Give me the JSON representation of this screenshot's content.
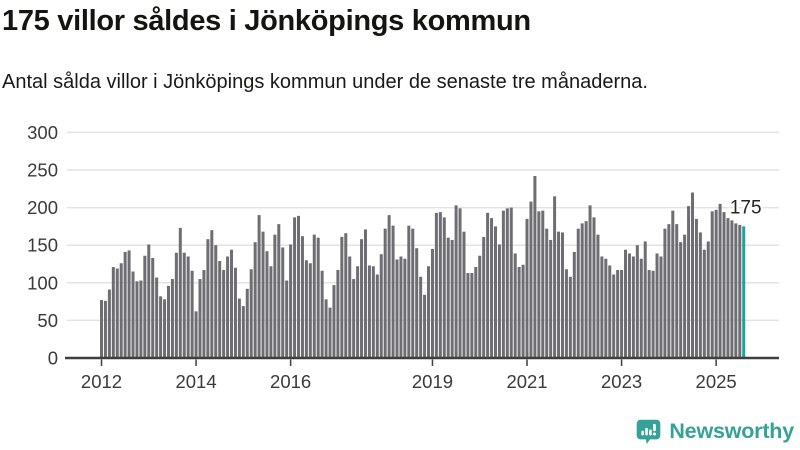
{
  "chart_data": {
    "type": "bar",
    "title": "175 villor såldes i Jönköpings kommun",
    "subtitle": "Antal sålda villor i Jönköpings kommun under de senaste tre månaderna.",
    "x_start": "2012-01",
    "x_end": "2025-08",
    "frequency": "monthly-rolling-3-months",
    "values": [
      77,
      76,
      91,
      121,
      119,
      126,
      141,
      143,
      115,
      102,
      103,
      136,
      151,
      133,
      107,
      82,
      78,
      96,
      105,
      140,
      173,
      140,
      135,
      116,
      62,
      105,
      117,
      158,
      170,
      150,
      129,
      117,
      135,
      144,
      120,
      79,
      69,
      92,
      118,
      154,
      190,
      168,
      142,
      122,
      164,
      178,
      147,
      103,
      151,
      187,
      189,
      162,
      130,
      126,
      164,
      160,
      116,
      78,
      67,
      97,
      117,
      161,
      166,
      135,
      105,
      122,
      158,
      171,
      123,
      122,
      111,
      138,
      172,
      190,
      176,
      131,
      135,
      132,
      176,
      172,
      146,
      108,
      84,
      122,
      145,
      193,
      194,
      187,
      160,
      157,
      203,
      199,
      168,
      113,
      113,
      121,
      136,
      161,
      193,
      186,
      175,
      151,
      196,
      199,
      200,
      139,
      121,
      124,
      185,
      208,
      242,
      195,
      196,
      172,
      157,
      215,
      168,
      167,
      118,
      108,
      141,
      172,
      179,
      182,
      203,
      187,
      164,
      135,
      132,
      123,
      111,
      117,
      117,
      144,
      139,
      135,
      150,
      132,
      155,
      117,
      116,
      139,
      135,
      172,
      178,
      196,
      178,
      154,
      164,
      202,
      220,
      185,
      167,
      144,
      155,
      195,
      197,
      205,
      194,
      186,
      183,
      179,
      177,
      175
    ],
    "ylim": [
      0,
      300
    ],
    "yticks": [
      0,
      50,
      100,
      150,
      200,
      250,
      300
    ],
    "xtick_years": [
      2012,
      2014,
      2016,
      2019,
      2021,
      2023,
      2025
    ],
    "grid": "horizontal",
    "legend": "none",
    "bar_color": "#6d6d72",
    "highlight_index": 163,
    "highlight_color": "#19a2a3",
    "highlight_label": "175",
    "axis_color": "#3f3f3f",
    "gridline_color": "#e3e3e3",
    "tick_label_color": "#3a3a3a"
  },
  "footer": {
    "brand": "Newsworthy",
    "brand_color": "#36a198",
    "logo_icon": "bar-chart-speech-bubble-icon"
  }
}
